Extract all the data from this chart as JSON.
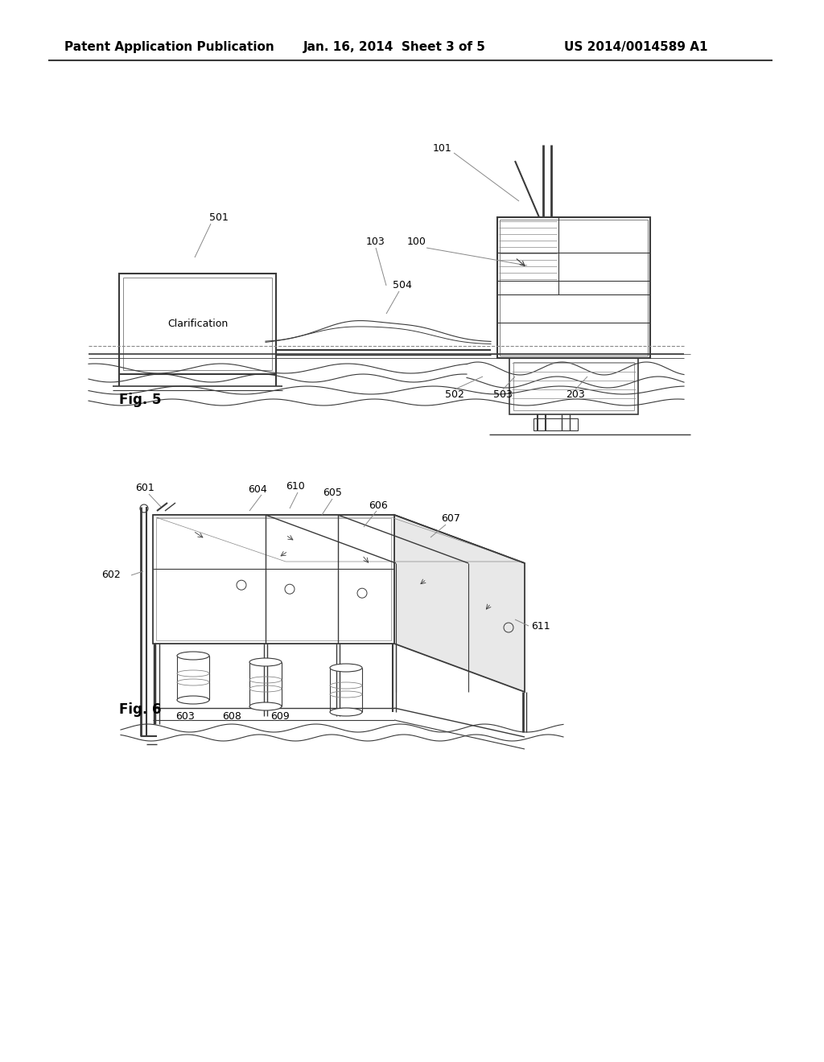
{
  "background_color": "#ffffff",
  "header_text": "Patent Application Publication",
  "header_date": "Jan. 16, 2014  Sheet 3 of 5",
  "header_patent": "US 2014/0014589 A1",
  "fig5_label": "Fig. 5",
  "fig6_label": "Fig. 6",
  "line_color": "#3a3a3a",
  "light_color": "#888888",
  "text_color": "#000000",
  "gray_fill": "#d8d8d8",
  "light_gray": "#eeeeee"
}
